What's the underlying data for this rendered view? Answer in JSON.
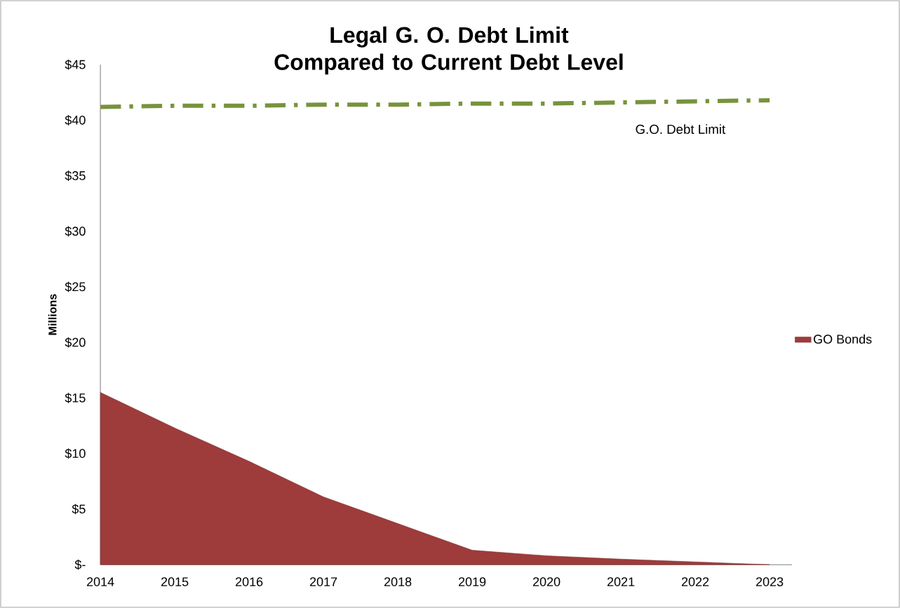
{
  "chart_data": {
    "type": "area",
    "title": "Legal G. O. Debt Limit Compared to Current Debt Level",
    "ylabel": "Millions",
    "categories": [
      "2014",
      "2015",
      "2016",
      "2017",
      "2018",
      "2019",
      "2020",
      "2021",
      "2022",
      "2023"
    ],
    "series": [
      {
        "name": "GO Bonds",
        "color": "#9e3b3b",
        "values": [
          15.5,
          12.3,
          9.3,
          6.1,
          3.7,
          1.3,
          0.8,
          0.5,
          0.25,
          0
        ]
      },
      {
        "name": "G.O. Debt Limit",
        "type": "line",
        "color": "#77933c",
        "line_style": "dashed",
        "values": [
          41.2,
          41.3,
          41.3,
          41.4,
          41.4,
          41.5,
          41.5,
          41.6,
          41.7,
          41.8
        ]
      }
    ],
    "ylim": [
      0,
      45
    ],
    "yticks": [
      {
        "value": 0,
        "label": "$-"
      },
      {
        "value": 5,
        "label": "$5"
      },
      {
        "value": 10,
        "label": "$10"
      },
      {
        "value": 15,
        "label": "$15"
      },
      {
        "value": 20,
        "label": "$20"
      },
      {
        "value": 25,
        "label": "$25"
      },
      {
        "value": 30,
        "label": "$30"
      },
      {
        "value": 35,
        "label": "$35"
      },
      {
        "value": 40,
        "label": "$40"
      },
      {
        "value": 45,
        "label": "$45"
      }
    ],
    "legend": "right",
    "grid": false,
    "marker": "none"
  }
}
